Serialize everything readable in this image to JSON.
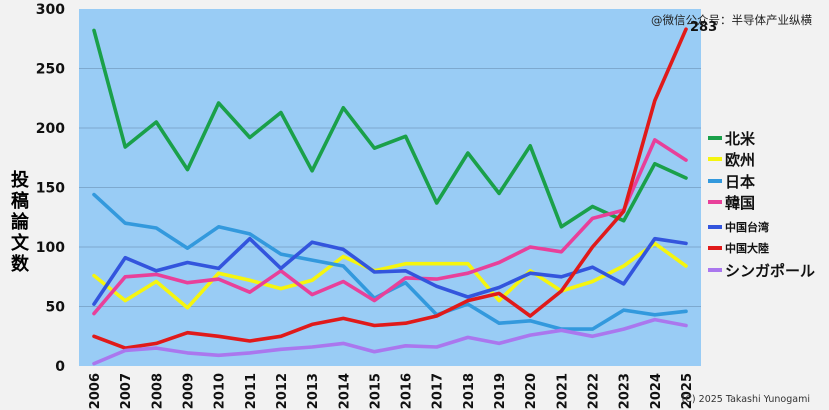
{
  "watermark": "@微信公众号：半导体产业纵横",
  "copyright": "(C) 2025 Takashi Yunogami",
  "chart_data": {
    "type": "line",
    "ylabel": "投稿論文数",
    "ylim": [
      0,
      300
    ],
    "yticks": [
      0,
      50,
      100,
      150,
      200,
      250,
      300
    ],
    "x": [
      "2006",
      "2007",
      "2008",
      "2009",
      "2010",
      "2011",
      "2012",
      "2013",
      "2014",
      "2015",
      "2016",
      "2017",
      "2018",
      "2019",
      "2020",
      "2021",
      "2022",
      "2023",
      "2024",
      "2025"
    ],
    "grid": "horizontal",
    "legend": "right",
    "annotation": {
      "label": "283",
      "series": "中国大陸",
      "x": "2025"
    },
    "series": [
      {
        "name": "北米",
        "color": "#1aa04a",
        "values": [
          282,
          184,
          205,
          165,
          221,
          192,
          213,
          164,
          217,
          183,
          193,
          137,
          179,
          145,
          185,
          117,
          134,
          122,
          170,
          158
        ]
      },
      {
        "name": "欧州",
        "color": "#f5f50f",
        "values": [
          76,
          55,
          71,
          49,
          78,
          72,
          65,
          72,
          92,
          80,
          86,
          86,
          86,
          55,
          80,
          63,
          71,
          84,
          103,
          84
        ]
      },
      {
        "name": "日本",
        "color": "#3399dd",
        "values": [
          144,
          120,
          116,
          99,
          117,
          111,
          94,
          89,
          84,
          57,
          70,
          43,
          52,
          36,
          38,
          31,
          31,
          47,
          43,
          46
        ]
      },
      {
        "name": "韓国",
        "color": "#e8409a",
        "values": [
          44,
          75,
          77,
          70,
          73,
          62,
          80,
          60,
          71,
          55,
          74,
          73,
          78,
          87,
          100,
          96,
          124,
          131,
          190,
          173
        ]
      },
      {
        "name": "中国台湾",
        "color": "#3355dd",
        "values": [
          52,
          91,
          80,
          87,
          82,
          107,
          82,
          104,
          98,
          79,
          80,
          67,
          58,
          66,
          78,
          75,
          83,
          69,
          107,
          103
        ]
      },
      {
        "name": "中国大陸",
        "color": "#e01a1a",
        "values": [
          25,
          15,
          19,
          28,
          25,
          21,
          25,
          35,
          40,
          34,
          36,
          42,
          55,
          61,
          42,
          63,
          100,
          130,
          223,
          283
        ]
      },
      {
        "name": "シンガポール",
        "color": "#aa77ee",
        "values": [
          2,
          13,
          15,
          11,
          9,
          11,
          14,
          16,
          19,
          12,
          17,
          16,
          24,
          19,
          26,
          30,
          25,
          31,
          39,
          34
        ]
      }
    ]
  }
}
